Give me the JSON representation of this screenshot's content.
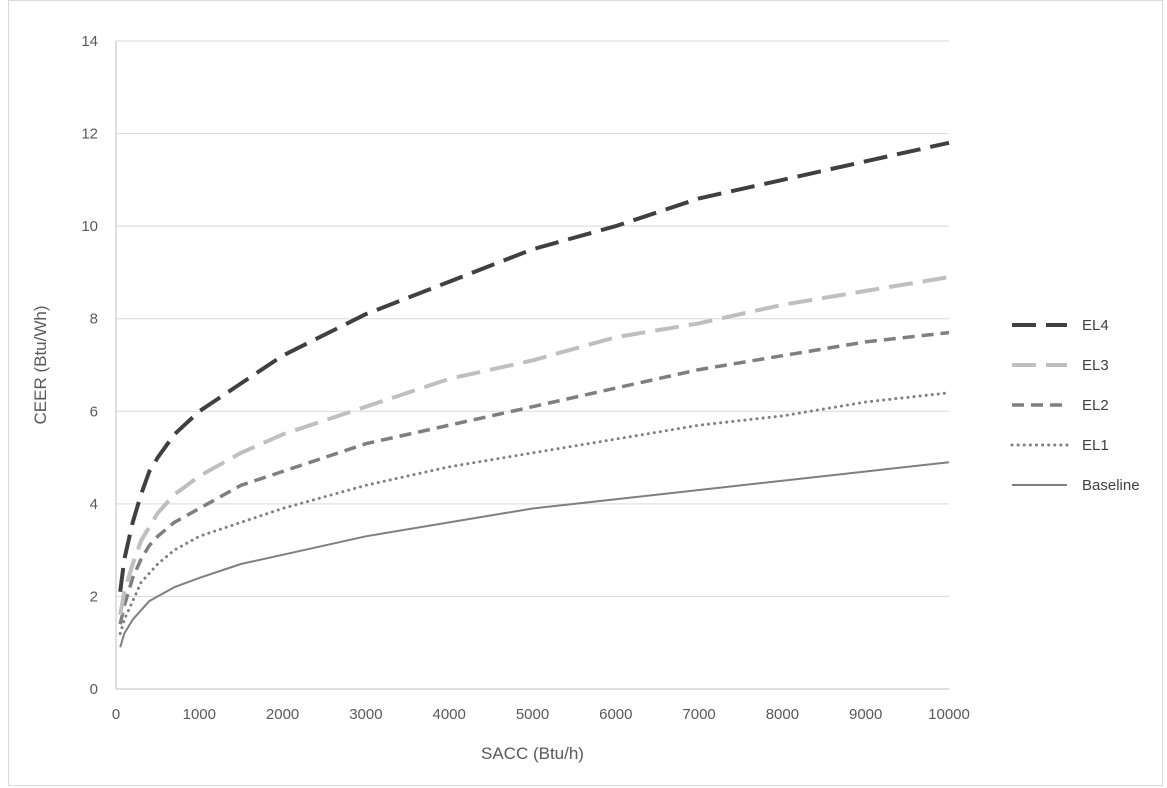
{
  "chart_data": {
    "type": "line",
    "xlabel": "SACC (Btu/h)",
    "ylabel": "CEER (Btu/Wh)",
    "xlim": [
      0,
      10000
    ],
    "ylim": [
      0,
      14
    ],
    "xticks": [
      0,
      1000,
      2000,
      3000,
      4000,
      5000,
      6000,
      7000,
      8000,
      9000,
      10000
    ],
    "yticks": [
      0,
      2,
      4,
      6,
      8,
      10,
      12,
      14
    ],
    "grid": "horizontal",
    "legend": "right",
    "x": [
      50,
      100,
      200,
      300,
      400,
      500,
      700,
      1000,
      1500,
      2000,
      3000,
      4000,
      5000,
      6000,
      7000,
      8000,
      9000,
      10000
    ],
    "series": [
      {
        "name": "EL4",
        "color": "#404040",
        "style": "long-dash",
        "values": [
          2.1,
          2.8,
          3.6,
          4.2,
          4.7,
          5.0,
          5.5,
          6.0,
          6.6,
          7.2,
          8.1,
          8.8,
          9.5,
          10.0,
          10.6,
          11.0,
          11.4,
          11.8
        ]
      },
      {
        "name": "EL3",
        "color": "#bfbfbf",
        "style": "long-dash",
        "values": [
          1.6,
          2.1,
          2.7,
          3.2,
          3.5,
          3.8,
          4.2,
          4.6,
          5.1,
          5.5,
          6.1,
          6.7,
          7.1,
          7.6,
          7.9,
          8.3,
          8.6,
          8.9
        ]
      },
      {
        "name": "EL2",
        "color": "#7f7f7f",
        "style": "dash",
        "values": [
          1.4,
          1.8,
          2.4,
          2.8,
          3.1,
          3.3,
          3.6,
          3.9,
          4.4,
          4.7,
          5.3,
          5.7,
          6.1,
          6.5,
          6.9,
          7.2,
          7.5,
          7.7
        ]
      },
      {
        "name": "EL1",
        "color": "#808080",
        "style": "dot",
        "values": [
          1.2,
          1.5,
          1.9,
          2.3,
          2.5,
          2.7,
          3.0,
          3.3,
          3.6,
          3.9,
          4.4,
          4.8,
          5.1,
          5.4,
          5.7,
          5.9,
          6.2,
          6.4
        ]
      },
      {
        "name": "Baseline",
        "color": "#7f7f7f",
        "style": "solid",
        "values": [
          0.9,
          1.2,
          1.5,
          1.7,
          1.9,
          2.0,
          2.2,
          2.4,
          2.7,
          2.9,
          3.3,
          3.6,
          3.9,
          4.1,
          4.3,
          4.5,
          4.7,
          4.9
        ]
      }
    ]
  }
}
